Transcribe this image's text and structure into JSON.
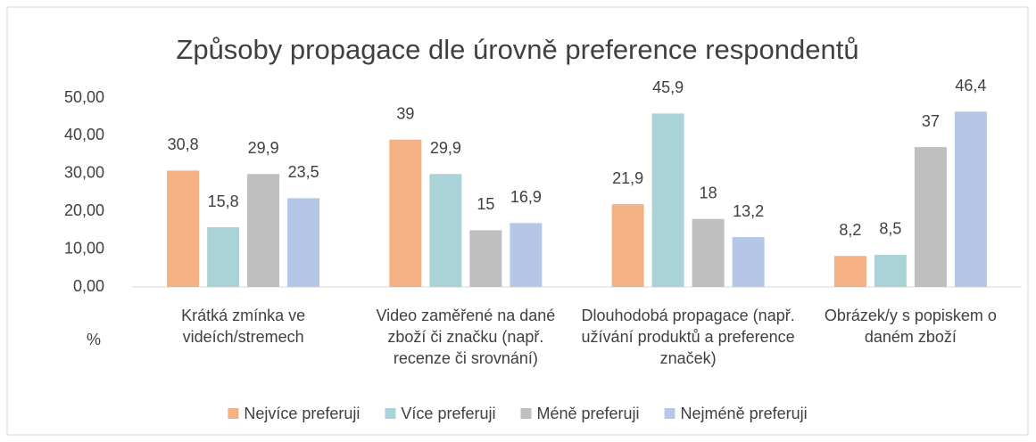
{
  "chart_data": {
    "type": "bar",
    "title": "Způsoby propagace dle úrovně preference respondentů",
    "y_label": "%",
    "categories": [
      "Krátká zmínka ve videích/stremech",
      "Video zaměřené na dané zboží či značku (např. recenze či srovnání)",
      "Dlouhodobá propagace (např. užívání produktů a preference značek)",
      "Obrázek/y s popiskem o daném zboží"
    ],
    "series": [
      {
        "name": "Nejvíce preferuji",
        "color": "#f4b183",
        "values": [
          30.8,
          39,
          21.9,
          8.2
        ],
        "value_labels": [
          "30,8",
          "39",
          "21,9",
          "8,2"
        ]
      },
      {
        "name": "Více preferuji",
        "color": "#a9d3d6",
        "values": [
          15.8,
          29.9,
          45.9,
          8.5
        ],
        "value_labels": [
          "15,8",
          "29,9",
          "45,9",
          "8,5"
        ]
      },
      {
        "name": "Méně preferuji",
        "color": "#bfbfbf",
        "values": [
          29.9,
          15,
          18,
          37
        ],
        "value_labels": [
          "29,9",
          "15",
          "18",
          "37"
        ]
      },
      {
        "name": "Nejméně preferuji",
        "color": "#b4c7e7",
        "values": [
          23.5,
          16.9,
          13.2,
          46.4
        ],
        "value_labels": [
          "23,5",
          "16,9",
          "13,2",
          "46,4"
        ]
      }
    ],
    "ylim": [
      0,
      50
    ],
    "yticks": [
      {
        "value": 0,
        "label": "0,00"
      },
      {
        "value": 10,
        "label": "10,00"
      },
      {
        "value": 20,
        "label": "20,00"
      },
      {
        "value": 30,
        "label": "30,00"
      },
      {
        "value": 40,
        "label": "40,00"
      },
      {
        "value": 50,
        "label": "50,00"
      }
    ],
    "grid": false,
    "legend": "bottom"
  }
}
